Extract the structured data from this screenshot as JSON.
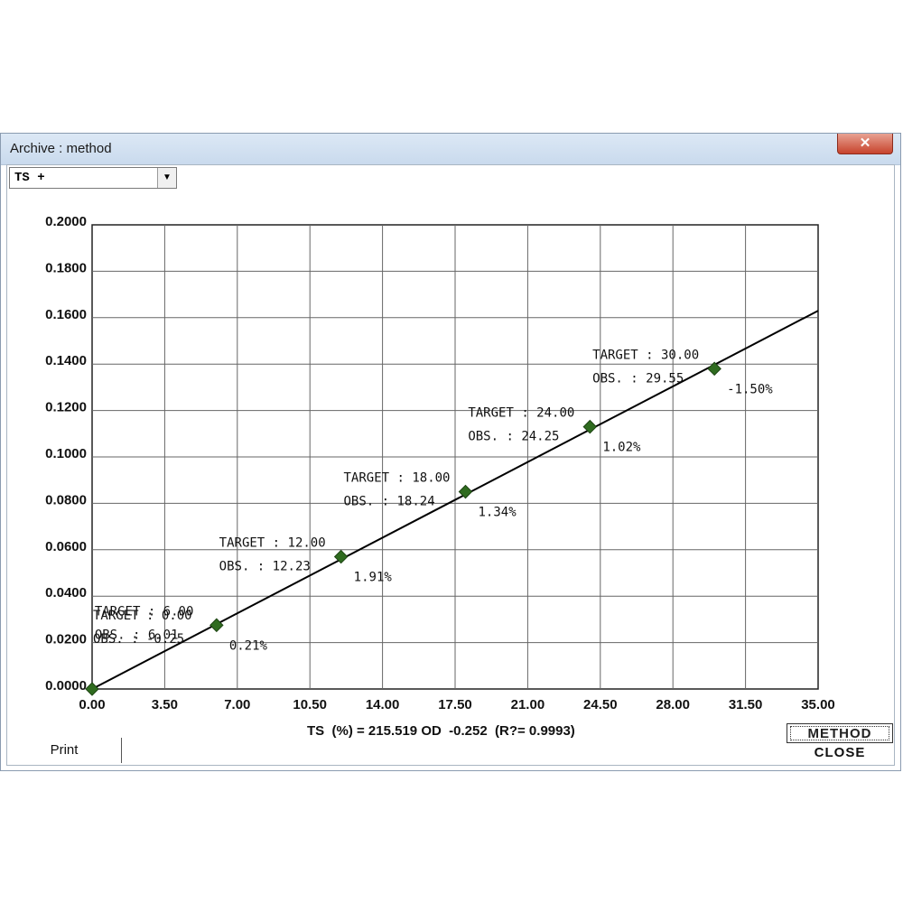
{
  "window": {
    "title": "Archive : method",
    "close_glyph": "✕"
  },
  "series_select": {
    "value": "TS +",
    "arrow": "▼"
  },
  "chart_data": {
    "type": "scatter",
    "x_ticks": [
      "0.00",
      "3.50",
      "7.00",
      "10.50",
      "14.00",
      "17.50",
      "21.00",
      "24.50",
      "28.00",
      "31.50",
      "35.00"
    ],
    "y_ticks": [
      "0.0000",
      "0.0200",
      "0.0400",
      "0.0600",
      "0.0800",
      "0.1000",
      "0.1200",
      "0.1400",
      "0.1600",
      "0.1800",
      "0.2000"
    ],
    "xlim": [
      0,
      35
    ],
    "ylim": [
      0,
      0.2
    ],
    "grid": true,
    "fit_line": {
      "x0": 0,
      "y0": 0.0,
      "x1": 35,
      "y1": 0.163
    },
    "points": [
      {
        "x": 0.0,
        "y": 0.0,
        "target": "TARGET : 0.00",
        "obs": "OBS. : -0.25",
        "deviation": ""
      },
      {
        "x": 6.0,
        "y": 0.0275,
        "target": "TARGET : 6.00",
        "obs": "OBS. :  6.01",
        "deviation": "0.21%"
      },
      {
        "x": 12.0,
        "y": 0.057,
        "target": "TARGET : 12.00",
        "obs": "OBS. : 12.23",
        "deviation": "1.91%"
      },
      {
        "x": 18.0,
        "y": 0.085,
        "target": "TARGET : 18.00",
        "obs": "OBS. : 18.24",
        "deviation": "1.34%"
      },
      {
        "x": 24.0,
        "y": 0.113,
        "target": "TARGET : 24.00",
        "obs": "OBS. : 24.25",
        "deviation": "1.02%"
      },
      {
        "x": 30.0,
        "y": 0.138,
        "target": "TARGET : 30.00",
        "obs": "OBS. : 29.55",
        "deviation": "-1.50%"
      }
    ],
    "colors": {
      "point": "#2f6b1f",
      "line": "#000000",
      "grid": "#666666"
    }
  },
  "footer": {
    "equation": "TS  (%) = 215.519 OD  -0.252  (R?= 0.9993)",
    "print_label": "Print",
    "method_label": "METHOD",
    "close_label": "CLOSE"
  }
}
